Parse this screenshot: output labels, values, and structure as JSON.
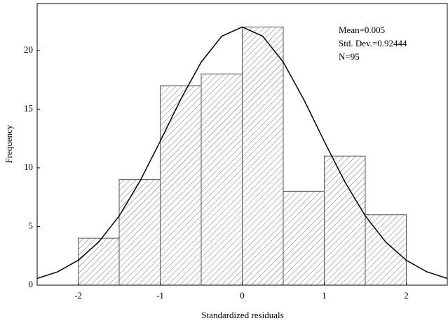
{
  "chart_data": {
    "type": "histogram",
    "bins": [
      -2,
      -1.5,
      -1,
      -0.5,
      0,
      0.5,
      1,
      1.5,
      2
    ],
    "values": [
      4,
      9,
      17,
      18,
      22,
      8,
      11,
      6
    ],
    "color": "#555555",
    "xlabel": "Standardized residuals",
    "ylabel": "Frequency",
    "xlim": [
      -2.5,
      2.5
    ],
    "xticks": [
      -2,
      -1,
      0,
      1,
      2
    ],
    "ylim": [
      0,
      24
    ],
    "yticks": [
      0,
      5,
      10,
      15,
      20
    ],
    "annotations": [
      "Mean=0.005",
      "Std. Dev.=0.92444",
      "N=95"
    ],
    "curve": {
      "color": "#000000",
      "x": [
        -2.5,
        -2.25,
        -2,
        -1.75,
        -1.5,
        -1.25,
        -1,
        -0.75,
        -0.5,
        -0.25,
        0,
        0.25,
        0.5,
        0.75,
        1,
        1.25,
        1.5,
        1.75,
        2,
        2.25,
        2.5
      ],
      "values": [
        0.57,
        1.14,
        2.12,
        3.67,
        5.9,
        8.82,
        12.26,
        15.83,
        19.01,
        21.21,
        22,
        21.21,
        19.01,
        15.83,
        12.26,
        8.82,
        5.9,
        3.67,
        2.12,
        1.14,
        0.57
      ]
    }
  }
}
